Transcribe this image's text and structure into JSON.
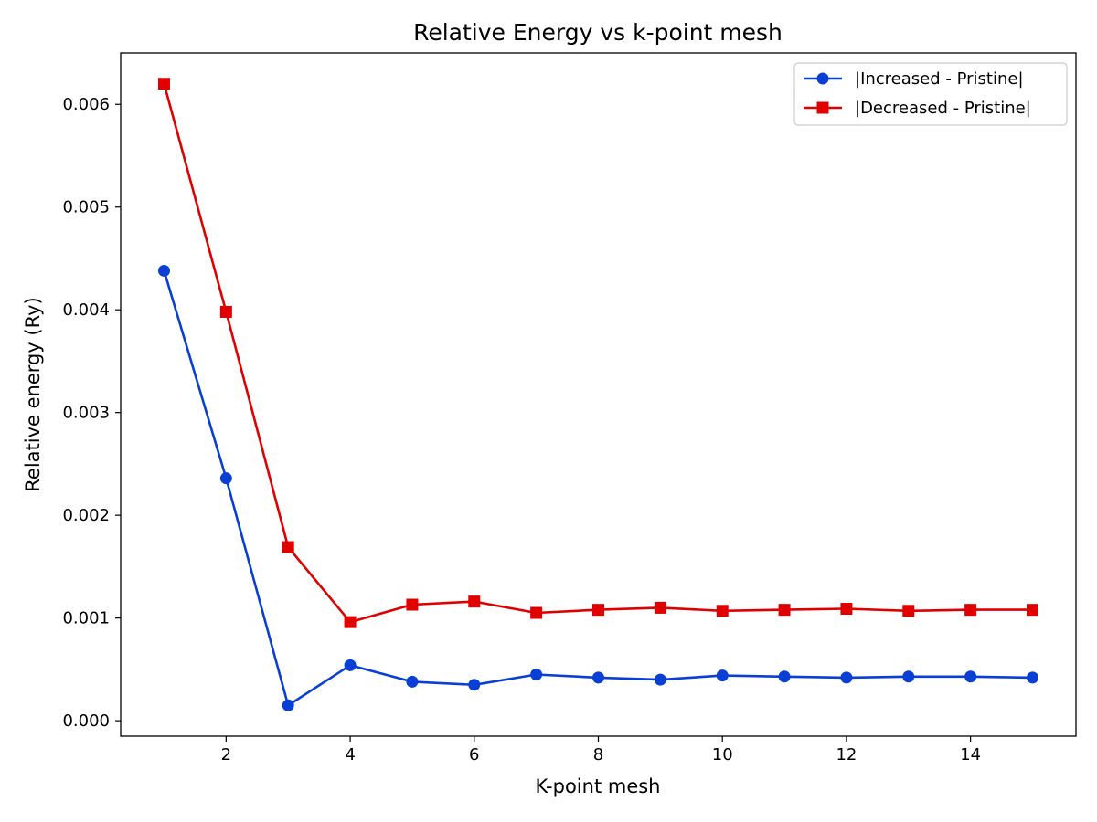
{
  "chart_data": {
    "type": "line",
    "title": "Relative Energy vs k-point mesh",
    "xlabel": "K-point mesh",
    "ylabel": "Relative energy (Ry)",
    "xlim": [
      0.3,
      15.7
    ],
    "ylim": [
      -0.00015,
      0.0065
    ],
    "xticks": [
      2,
      4,
      6,
      8,
      10,
      12,
      14
    ],
    "yticks": [
      0.0,
      0.001,
      0.002,
      0.003,
      0.004,
      0.005,
      0.006
    ],
    "ytick_labels": [
      "0.000",
      "0.001",
      "0.002",
      "0.003",
      "0.004",
      "0.005",
      "0.006"
    ],
    "grid": false,
    "legend_position": "top-right",
    "x": [
      1,
      2,
      3,
      4,
      5,
      6,
      7,
      8,
      9,
      10,
      11,
      12,
      13,
      14,
      15
    ],
    "series": [
      {
        "name": "|Increased - Pristine|",
        "color": "#0a3fd6",
        "marker": "circle",
        "values": [
          0.00438,
          0.00236,
          0.00015,
          0.00054,
          0.00038,
          0.00035,
          0.00045,
          0.00042,
          0.0004,
          0.00044,
          0.00043,
          0.00042,
          0.00043,
          0.00043,
          0.00042
        ]
      },
      {
        "name": "|Decreased - Pristine|",
        "color": "#e00000",
        "marker": "square",
        "values": [
          0.0062,
          0.00398,
          0.00169,
          0.00096,
          0.00113,
          0.00116,
          0.00105,
          0.00108,
          0.0011,
          0.00107,
          0.00108,
          0.00109,
          0.00107,
          0.00108,
          0.00108
        ]
      }
    ]
  }
}
